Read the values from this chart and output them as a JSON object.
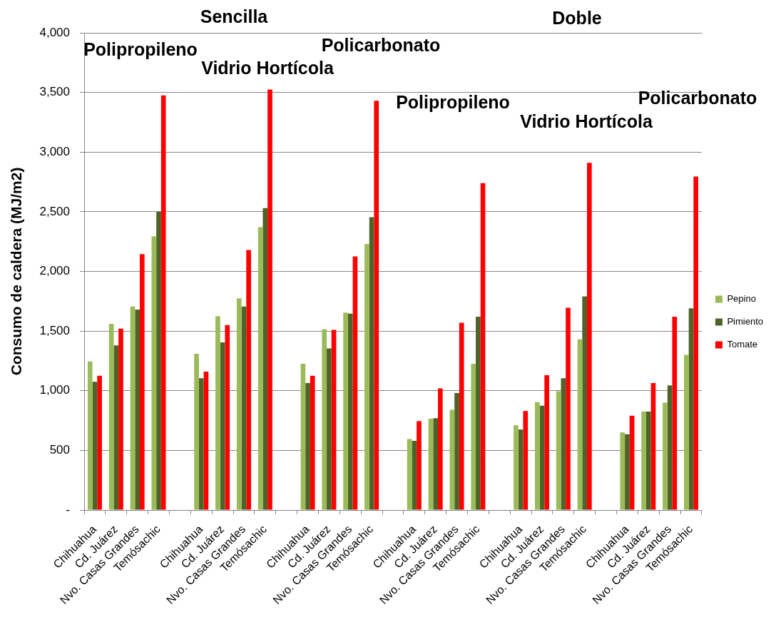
{
  "chart_data": {
    "type": "bar",
    "categories": [
      "Chihuahua",
      "Cd. Juárez",
      "Nvo. Casas Grandes",
      "Temósachic",
      null,
      "Chihuahua",
      "Cd. Juárez",
      "Nvo. Casas Grandes",
      "Temósachic",
      null,
      "Chihuahua",
      "Cd. Juárez",
      "Nvo. Casas Grandes",
      "Temósachic",
      null,
      "Chihuahua",
      "Cd. Juárez",
      "Nvo. Casas Grandes",
      "Temósachic",
      null,
      "Chihuahua",
      "Cd. Juárez",
      "Nvo. Casas Grandes",
      "Temósachic",
      null,
      "Chihuahua",
      "Cd. Juárez",
      "Nvo. Casas Grandes",
      "Temósachic"
    ],
    "series": [
      {
        "name": "Pepino",
        "color": "#9bbb59",
        "values": [
          1245,
          1560,
          1705,
          2295,
          null,
          1310,
          1625,
          1775,
          2370,
          null,
          1225,
          1515,
          1655,
          2230,
          null,
          595,
          765,
          840,
          1225,
          null,
          710,
          905,
          995,
          1430,
          null,
          650,
          825,
          900,
          1300
        ]
      },
      {
        "name": "Pimiento",
        "color": "#4f6228",
        "values": [
          1075,
          1380,
          1680,
          2500,
          null,
          1105,
          1405,
          1705,
          2530,
          null,
          1065,
          1355,
          1645,
          2455,
          null,
          580,
          770,
          980,
          1620,
          null,
          675,
          875,
          1105,
          1790,
          null,
          635,
          825,
          1045,
          1690
        ]
      },
      {
        "name": "Tomate",
        "color": "#ff0000",
        "values": [
          1125,
          1520,
          2145,
          3475,
          null,
          1160,
          1550,
          2180,
          3525,
          null,
          1125,
          1510,
          2125,
          3430,
          null,
          745,
          1020,
          1570,
          2740,
          null,
          830,
          1130,
          1695,
          2910,
          null,
          790,
          1065,
          1620,
          2795
        ]
      }
    ],
    "ylabel": "Consumo de caldera (MJ/m2)",
    "ylim": [
      0,
      4000
    ],
    "yticks": [
      {
        "value": 0,
        "label": "-"
      },
      500,
      {
        "value": 1000,
        "label": "1,000"
      },
      {
        "value": 1500,
        "label": "1,500"
      },
      {
        "value": 2000,
        "label": "2,000"
      },
      {
        "value": 2500,
        "label": "2,500"
      },
      {
        "value": 3000,
        "label": "3,000"
      },
      {
        "value": 3500,
        "label": "3,500"
      },
      {
        "value": 4000,
        "label": "4,000"
      }
    ],
    "grid": "y",
    "legend": "right",
    "annotations": [
      "Sencilla",
      "Doble",
      "Polipropileno",
      "Vidrio Hortícola",
      "Policarbonato",
      "Polipropileno",
      "Vidrio Hortícola",
      "Policarbonato"
    ]
  }
}
